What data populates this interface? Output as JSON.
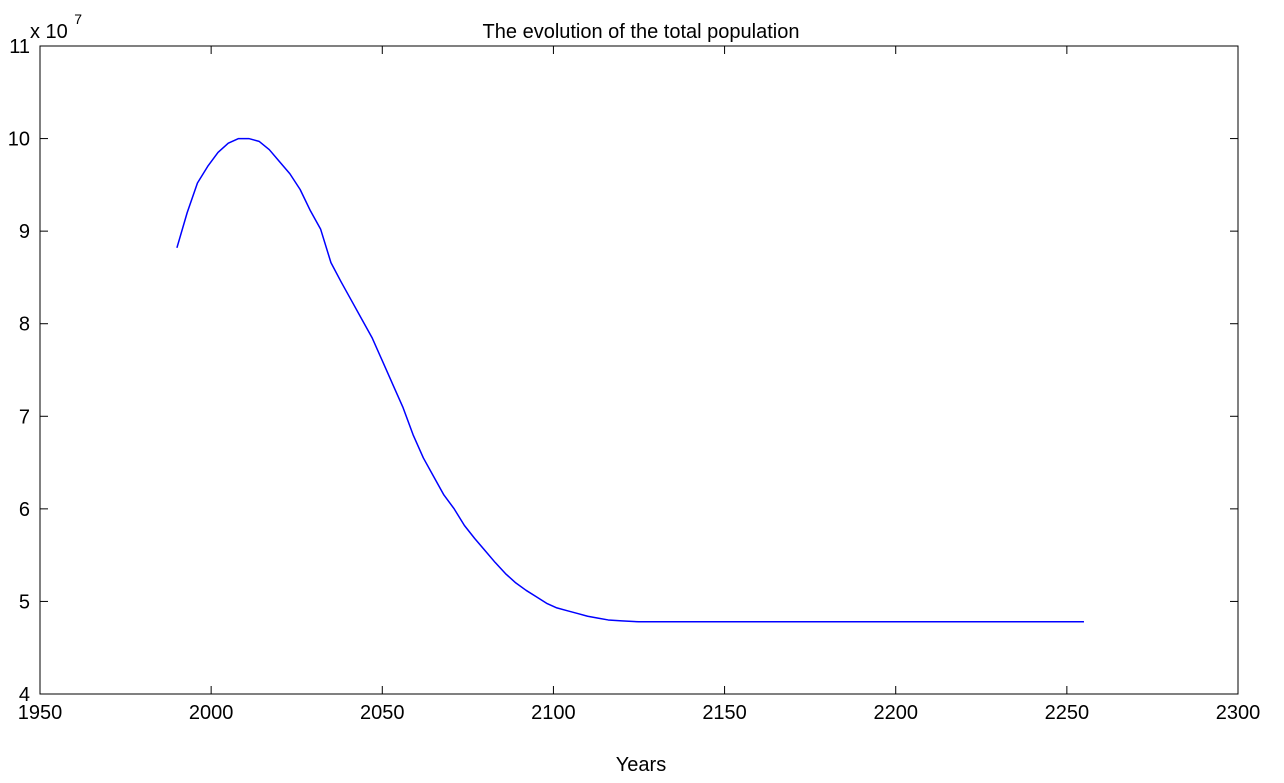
{
  "chart_data": {
    "type": "line",
    "title": "The evolution of the total population",
    "xlabel": "Years",
    "ylabel": "",
    "y_multiplier": {
      "base": "x 10",
      "exponent": "7"
    },
    "xlim": [
      1950,
      2300
    ],
    "ylim": [
      4,
      11
    ],
    "x_ticks": [
      1950,
      2000,
      2050,
      2100,
      2150,
      2200,
      2250,
      2300
    ],
    "y_ticks": [
      4,
      5,
      6,
      7,
      8,
      9,
      10,
      11
    ],
    "grid": false,
    "colors": {
      "line": "#0000ff",
      "axes": "#000000",
      "background": "#ffffff"
    },
    "series": [
      {
        "points": [
          [
            1990,
            8.82
          ],
          [
            1993,
            9.2
          ],
          [
            1996,
            9.52
          ],
          [
            1999,
            9.7
          ],
          [
            2002,
            9.85
          ],
          [
            2005,
            9.95
          ],
          [
            2008,
            10.0
          ],
          [
            2011,
            10.0
          ],
          [
            2014,
            9.97
          ],
          [
            2017,
            9.88
          ],
          [
            2020,
            9.75
          ],
          [
            2023,
            9.62
          ],
          [
            2026,
            9.45
          ],
          [
            2029,
            9.22
          ],
          [
            2032,
            9.02
          ],
          [
            2035,
            8.66
          ],
          [
            2038,
            8.45
          ],
          [
            2041,
            8.25
          ],
          [
            2044,
            8.05
          ],
          [
            2047,
            7.85
          ],
          [
            2050,
            7.6
          ],
          [
            2053,
            7.35
          ],
          [
            2056,
            7.1
          ],
          [
            2059,
            6.8
          ],
          [
            2062,
            6.55
          ],
          [
            2065,
            6.35
          ],
          [
            2068,
            6.15
          ],
          [
            2071,
            6.0
          ],
          [
            2074,
            5.82
          ],
          [
            2077,
            5.68
          ],
          [
            2080,
            5.55
          ],
          [
            2083,
            5.42
          ],
          [
            2086,
            5.3
          ],
          [
            2089,
            5.2
          ],
          [
            2092,
            5.12
          ],
          [
            2095,
            5.05
          ],
          [
            2098,
            4.98
          ],
          [
            2101,
            4.93
          ],
          [
            2104,
            4.9
          ],
          [
            2107,
            4.87
          ],
          [
            2110,
            4.84
          ],
          [
            2113,
            4.82
          ],
          [
            2116,
            4.8
          ],
          [
            2120,
            4.79
          ],
          [
            2125,
            4.78
          ],
          [
            2130,
            4.78
          ],
          [
            2150,
            4.78
          ],
          [
            2175,
            4.78
          ],
          [
            2200,
            4.78
          ],
          [
            2225,
            4.78
          ],
          [
            2255,
            4.78
          ]
        ]
      }
    ]
  }
}
